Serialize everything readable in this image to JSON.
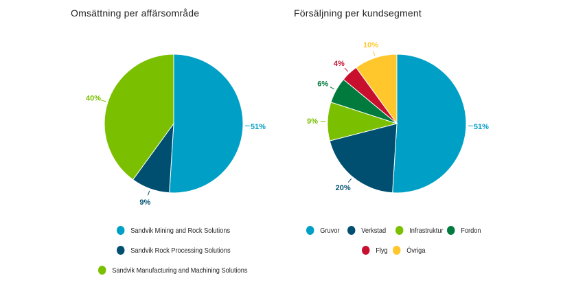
{
  "chart_data": [
    {
      "type": "pie",
      "title": "Omsättning per affärsområde",
      "categories": [
        "Sandvik Mining and Rock Solutions",
        "Sandvik Rock Processing Solutions",
        "Sandvik Manufacturing and Machining Solutions"
      ],
      "values": [
        51,
        9,
        40
      ],
      "labels": [
        "51%",
        "9%",
        "40%"
      ],
      "colors": [
        "#00a0c6",
        "#004f71",
        "#7ac000"
      ],
      "legend_position": "bottom"
    },
    {
      "type": "pie",
      "title": "Försäljning per kundsegment",
      "categories": [
        "Gruvor",
        "Verkstad",
        "Infrastruktur",
        "Fordon",
        "Flyg",
        "Övriga"
      ],
      "values": [
        51,
        20,
        9,
        6,
        4,
        10
      ],
      "labels": [
        "51%",
        "20%",
        "9%",
        "6%",
        "4%",
        "10%"
      ],
      "colors": [
        "#00a0c6",
        "#004f71",
        "#7ac000",
        "#007a3d",
        "#c8102e",
        "#ffc72c"
      ],
      "legend_position": "bottom"
    }
  ]
}
